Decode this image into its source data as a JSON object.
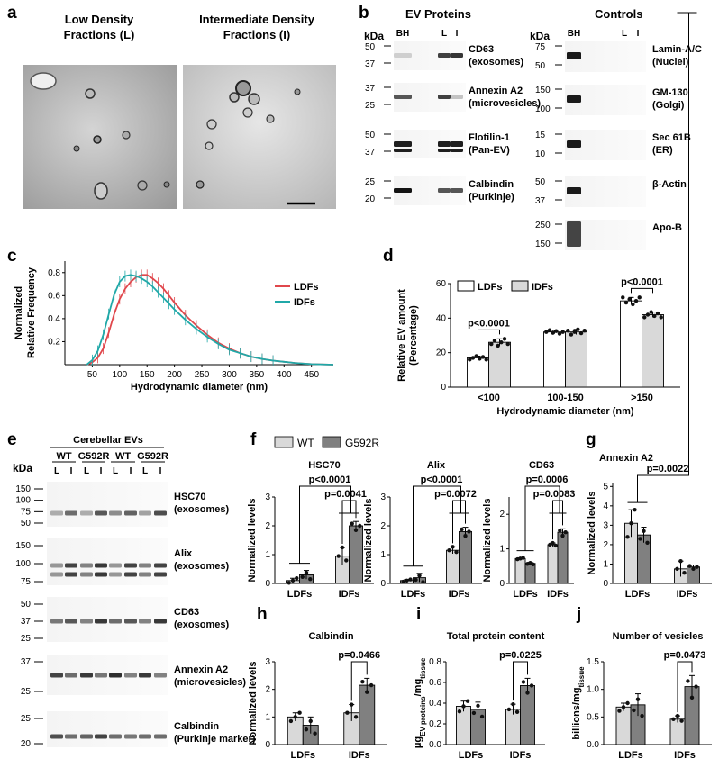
{
  "panel_labels": {
    "a": "a",
    "b": "b",
    "c": "c",
    "d": "d",
    "e": "e",
    "f": "f",
    "g": "g",
    "h": "h",
    "i": "i",
    "j": "j"
  },
  "panel_a": {
    "left_title": [
      "Low Density",
      "Fractions (L)"
    ],
    "right_title": [
      "Intermediate Density",
      "Fractions (I)"
    ]
  },
  "panel_b": {
    "ev_title": "EV Proteins",
    "controls_title": "Controls",
    "kda": "kDa",
    "lanes": [
      "BH",
      "L",
      "I"
    ],
    "ev_blots": [
      {
        "label": [
          "CD63",
          "(exosomes)"
        ],
        "ticks": [
          "50",
          "37"
        ]
      },
      {
        "label": [
          "Annexin A2",
          "(microvesicles)"
        ],
        "ticks": [
          "37",
          "25"
        ]
      },
      {
        "label": [
          "Flotilin-1",
          "(Pan-EV)"
        ],
        "ticks": [
          "50",
          "37"
        ]
      },
      {
        "label": [
          "Calbindin",
          "(Purkinje)"
        ],
        "ticks": [
          "25",
          "20"
        ]
      }
    ],
    "control_blots": [
      {
        "label": [
          "Lamin-A/C",
          "(Nuclei)"
        ],
        "ticks": [
          "75",
          "50"
        ]
      },
      {
        "label": [
          "GM-130",
          "(Golgi)"
        ],
        "ticks": [
          "150",
          "100"
        ]
      },
      {
        "label": [
          "Sec 61B",
          "(ER)"
        ],
        "ticks": [
          "15",
          "10"
        ]
      },
      {
        "label": [
          "β-Actin"
        ],
        "ticks": [
          "50",
          "37"
        ]
      },
      {
        "label": [
          "Apo-B"
        ],
        "ticks": [
          "250",
          "150"
        ]
      }
    ]
  },
  "panel_e": {
    "kda": "kDa",
    "group_title": "Cerebellar EVs",
    "genotypes": [
      "WT",
      "G592R",
      "WT",
      "G592R"
    ],
    "lanes": [
      "L",
      "I",
      "L",
      "I",
      "L",
      "I",
      "L",
      "I"
    ],
    "blots": [
      {
        "label": [
          "HSC70",
          "(exosomes)"
        ],
        "ticks": [
          "150",
          "100",
          "75",
          "50"
        ]
      },
      {
        "label": [
          "Alix",
          "(exosomes)"
        ],
        "ticks": [
          "150",
          "100",
          "75"
        ]
      },
      {
        "label": [
          "CD63",
          "(exosomes)"
        ],
        "ticks": [
          "50",
          "37",
          "25"
        ]
      },
      {
        "label": [
          "Annexin A2",
          "(microvesicles)"
        ],
        "ticks": [
          "37",
          "25"
        ]
      },
      {
        "label": [
          "Calbindin",
          "(Purkinje marker)"
        ],
        "ticks": [
          "25",
          "20"
        ]
      }
    ]
  },
  "legend_f": {
    "wt": "WT",
    "g592r": "G592R"
  },
  "colors": {
    "light_bar": "#d9d9d9",
    "dark_bar": "#808080",
    "ldf_line": "#e0474c",
    "idf_line": "#20a8a8"
  },
  "chart_data": [
    {
      "id": "c",
      "type": "line",
      "xlabel": "Hydrodynamic diameter (nm)",
      "ylabel": [
        "Normalized",
        "Relative Frequency"
      ],
      "xlim": [
        0,
        490
      ],
      "ylim": [
        0,
        0.9
      ],
      "xticks": [
        "50",
        "100",
        "150",
        "200",
        "250",
        "300",
        "350",
        "400",
        "450"
      ],
      "yticks": [
        "0.2",
        "0.4",
        "0.6",
        "0.8"
      ],
      "legend_position": "right",
      "x": [
        40,
        50,
        60,
        70,
        80,
        90,
        100,
        110,
        120,
        130,
        140,
        150,
        160,
        170,
        180,
        190,
        200,
        220,
        240,
        260,
        280,
        300,
        320,
        340,
        360,
        380,
        400,
        420,
        450,
        490
      ],
      "series": [
        {
          "name": "LDFs",
          "values": [
            0,
            0.02,
            0.06,
            0.14,
            0.28,
            0.44,
            0.57,
            0.66,
            0.72,
            0.76,
            0.78,
            0.78,
            0.75,
            0.71,
            0.66,
            0.6,
            0.54,
            0.43,
            0.34,
            0.26,
            0.19,
            0.14,
            0.1,
            0.07,
            0.05,
            0.035,
            0.025,
            0.015,
            0.005,
            0
          ]
        },
        {
          "name": "IDFs",
          "values": [
            0,
            0.04,
            0.12,
            0.26,
            0.44,
            0.61,
            0.72,
            0.77,
            0.78,
            0.77,
            0.75,
            0.72,
            0.68,
            0.63,
            0.58,
            0.53,
            0.48,
            0.39,
            0.31,
            0.24,
            0.18,
            0.13,
            0.1,
            0.07,
            0.05,
            0.035,
            0.025,
            0.015,
            0.005,
            0
          ]
        }
      ]
    },
    {
      "id": "d",
      "type": "bar",
      "xlabel": "Hydrodynamic diameter (nm)",
      "ylabel": [
        "Relative EV amount",
        "(Percentage)"
      ],
      "ylim": [
        0,
        60
      ],
      "yticks": [
        "0",
        "20",
        "40",
        "60"
      ],
      "categories": [
        "<100",
        "100-150",
        ">150"
      ],
      "legend_position": "top-left",
      "series": [
        {
          "name": "LDFs",
          "values": [
            17,
            32,
            50
          ],
          "errors": [
            1,
            1,
            2
          ]
        },
        {
          "name": "IDFs",
          "values": [
            26,
            32,
            42
          ],
          "errors": [
            2,
            1.5,
            1.5
          ]
        }
      ],
      "annotations": [
        {
          "text": "p<0.0001",
          "category": 0
        },
        {
          "text": "p<0.0001",
          "category": 2
        }
      ]
    },
    {
      "id": "f1",
      "type": "bar",
      "title": "HSC70",
      "ylabel": "Normalized levels",
      "ylim": [
        0,
        3
      ],
      "yticks": [
        "0",
        "1",
        "2",
        "3"
      ],
      "categories": [
        "LDFs",
        "IDFs"
      ],
      "series": [
        {
          "name": "WT",
          "values": [
            0.1,
            0.95
          ],
          "errors": [
            0.08,
            0.3
          ]
        },
        {
          "name": "G592R",
          "values": [
            0.3,
            2.0
          ],
          "errors": [
            0.15,
            0.15
          ]
        }
      ],
      "annotations": [
        {
          "text": "p<0.0001"
        },
        {
          "text": "p=0.0041"
        }
      ]
    },
    {
      "id": "f2",
      "type": "bar",
      "title": "Alix",
      "ylabel": "Normalized levels",
      "ylim": [
        0,
        3
      ],
      "yticks": [
        "0",
        "1",
        "2",
        "3"
      ],
      "categories": [
        "LDFs",
        "IDFs"
      ],
      "series": [
        {
          "name": "WT",
          "values": [
            0.1,
            1.15
          ],
          "errors": [
            0.04,
            0.12
          ]
        },
        {
          "name": "G592R",
          "values": [
            0.2,
            1.8
          ],
          "errors": [
            0.15,
            0.15
          ]
        }
      ],
      "annotations": [
        {
          "text": "p<0.0001"
        },
        {
          "text": "p=0.0072"
        }
      ]
    },
    {
      "id": "f3",
      "type": "bar",
      "title": "CD63",
      "ylabel": "Normalized levels",
      "ylim": [
        0,
        2.5
      ],
      "yticks": [
        "0",
        "1",
        "2"
      ],
      "categories": [
        "LDFs",
        "IDFs"
      ],
      "series": [
        {
          "name": "WT",
          "values": [
            0.72,
            1.12
          ],
          "errors": [
            0.02,
            0.05
          ]
        },
        {
          "name": "G592R",
          "values": [
            0.58,
            1.48
          ],
          "errors": [
            0.03,
            0.1
          ]
        }
      ],
      "annotations": [
        {
          "text": "p=0.0006"
        },
        {
          "text": "p=0.0083"
        }
      ]
    },
    {
      "id": "g",
      "type": "bar",
      "title": "Annexin A2",
      "ylabel": "Normalized levels",
      "ylim": [
        0,
        5.2
      ],
      "yticks": [
        "0",
        "1",
        "2",
        "3",
        "4",
        "5"
      ],
      "categories": [
        "LDFs",
        "IDFs"
      ],
      "series": [
        {
          "name": "WT",
          "values": [
            3.1,
            0.75
          ],
          "errors": [
            0.7,
            0.4
          ]
        },
        {
          "name": "G592R",
          "values": [
            2.5,
            0.85
          ],
          "errors": [
            0.4,
            0.1
          ]
        }
      ],
      "annotations": [
        {
          "text": "p=0.0022"
        }
      ]
    },
    {
      "id": "h",
      "type": "bar",
      "title": "Calbindin",
      "ylabel": "Normalized levels",
      "ylim": [
        0,
        3
      ],
      "yticks": [
        "0",
        "1",
        "2",
        "3"
      ],
      "categories": [
        "LDFs",
        "IDFs"
      ],
      "series": [
        {
          "name": "WT",
          "values": [
            1.0,
            1.15
          ],
          "errors": [
            0.15,
            0.3
          ]
        },
        {
          "name": "G592R",
          "values": [
            0.7,
            2.15
          ],
          "errors": [
            0.3,
            0.25
          ]
        }
      ],
      "annotations": [
        {
          "text": "p=0.0466"
        }
      ]
    },
    {
      "id": "i",
      "type": "bar",
      "title": "Total protein content",
      "ylabel": {
        "main": "μg",
        "sub1": "EV proteins",
        "mid": "/mg",
        "sub2": "tissue"
      },
      "ylim": [
        0,
        0.8
      ],
      "yticks": [
        "0.0",
        "0.2",
        "0.4",
        "0.6",
        "0.8"
      ],
      "categories": [
        "LDFs",
        "IDFs"
      ],
      "series": [
        {
          "name": "WT",
          "values": [
            0.37,
            0.34
          ],
          "errors": [
            0.05,
            0.05
          ]
        },
        {
          "name": "G592R",
          "values": [
            0.34,
            0.57
          ],
          "errors": [
            0.07,
            0.07
          ]
        }
      ],
      "annotations": [
        {
          "text": "p=0.0225"
        }
      ]
    },
    {
      "id": "j",
      "type": "bar",
      "title": "Number of vesicles",
      "ylabel": {
        "main": "billions/mg",
        "sub1": "",
        "mid": "",
        "sub2": "tissue"
      },
      "ylim": [
        0,
        1.5
      ],
      "yticks": [
        "0.0",
        "0.5",
        "1.0",
        "1.5"
      ],
      "categories": [
        "LDFs",
        "IDFs"
      ],
      "series": [
        {
          "name": "WT",
          "values": [
            0.68,
            0.46
          ],
          "errors": [
            0.07,
            0.06
          ]
        },
        {
          "name": "G592R",
          "values": [
            0.72,
            1.05
          ],
          "errors": [
            0.2,
            0.2
          ]
        }
      ],
      "annotations": [
        {
          "text": "p=0.0473"
        }
      ]
    }
  ]
}
